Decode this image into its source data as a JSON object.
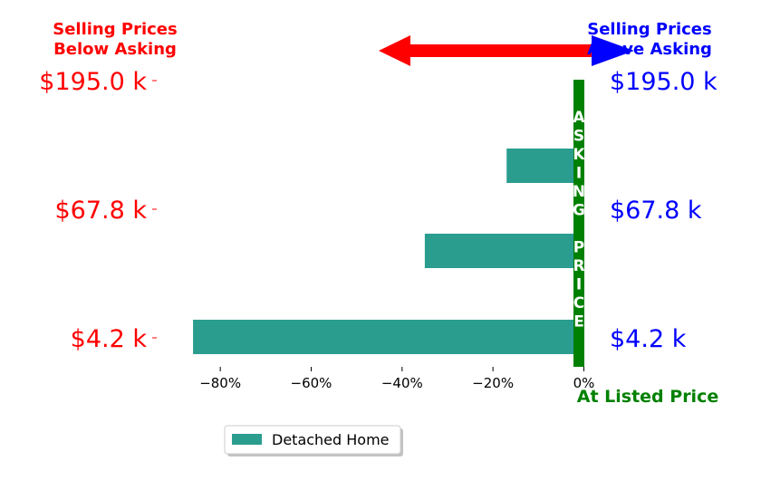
{
  "colors": {
    "below": "#ff0000",
    "above": "#0000ff",
    "asking": "#008000",
    "bar": "#2a9d8f"
  },
  "titles": {
    "below": [
      "Selling Prices",
      "Below Asking"
    ],
    "above": [
      "Selling Prices",
      "Above Asking"
    ],
    "listed": "At Listed Price",
    "asking_letters": [
      "A",
      "S",
      "K",
      "I",
      "N",
      "G",
      " ",
      "P",
      "R",
      "I",
      "C",
      "E"
    ]
  },
  "price_labels": {
    "left": [
      "$195.0 k",
      "$67.8 k",
      "$4.2 k"
    ],
    "right": [
      "$195.0 k",
      "$67.8 k",
      "$4.2 k"
    ]
  },
  "legend": {
    "label": "Detached Home"
  },
  "chart_data": {
    "type": "bar",
    "orientation": "horizontal",
    "categories": [
      "$4.2 k",
      "$67.8 k",
      "$195.0 k"
    ],
    "series": [
      {
        "name": "Detached Home",
        "values": [
          -86,
          -35,
          -17
        ]
      }
    ],
    "xlim": [
      -90,
      1.5
    ],
    "xticks": [
      -80,
      -60,
      -40,
      -20,
      0
    ],
    "xtick_labels": [
      "−80%",
      "−60%",
      "−40%",
      "−20%",
      "0%"
    ],
    "legend_position": "bottom-center",
    "grid": false
  }
}
